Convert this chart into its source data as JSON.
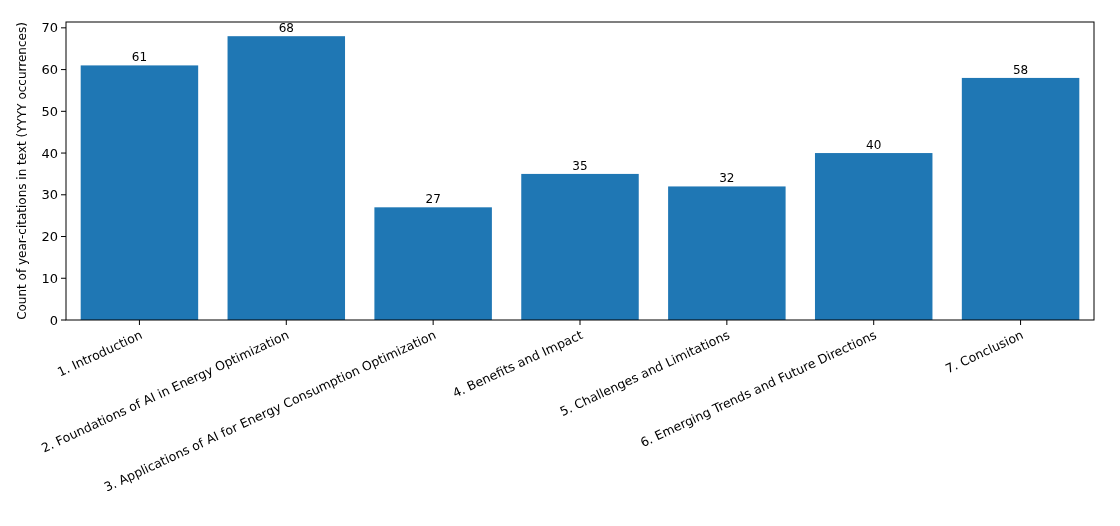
{
  "chart_data": {
    "type": "bar",
    "ylabel": "Count of year-citations in text (YYYY occurrences)",
    "categories": [
      "1. Introduction",
      "2. Foundations of AI in Energy Optimization",
      "3. Applications of AI for Energy Consumption Optimization",
      "4. Benefits and Impact",
      "5. Challenges and Limitations",
      "6. Emerging Trends and Future Directions",
      "7. Conclusion"
    ],
    "values": [
      61,
      68,
      27,
      35,
      32,
      40,
      58
    ],
    "color": "#1f77b4",
    "data_labels": true,
    "grid": false,
    "ylim": [
      0,
      71.4
    ],
    "yticks": [
      0,
      10,
      20,
      30,
      40,
      50,
      60,
      70
    ]
  }
}
